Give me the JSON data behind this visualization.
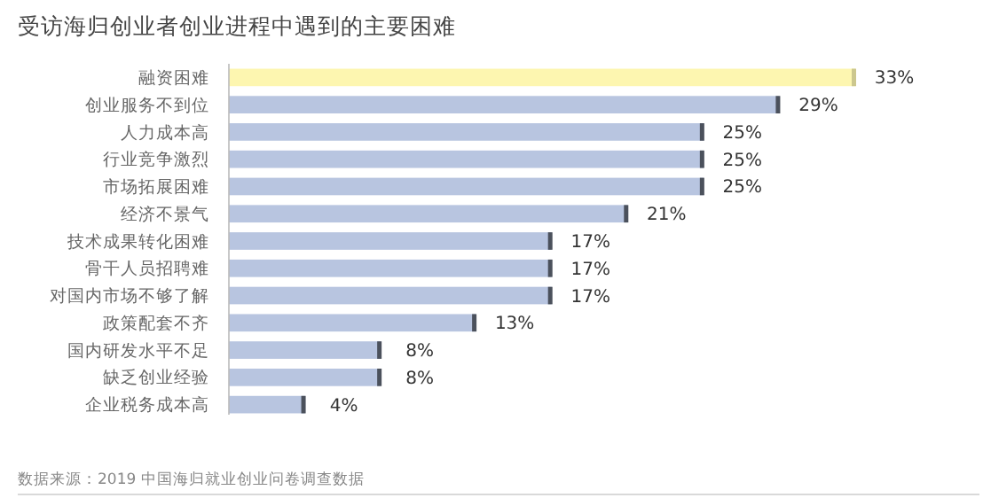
{
  "chart_data": {
    "type": "bar",
    "orientation": "horizontal",
    "title": "受访海归创业者创业进程中遇到的主要困难",
    "categories": [
      "融资困难",
      "创业服务不到位",
      "人力成本高",
      "行业竞争激烈",
      "市场拓展困难",
      "经济不景气",
      "技术成果转化困难",
      "骨干人员招聘难",
      "对国内市场不够了解",
      "政策配套不齐",
      "国内研发水平不足",
      "缺乏创业经验",
      "企业税务成本高"
    ],
    "values": [
      33,
      29,
      25,
      25,
      25,
      21,
      17,
      17,
      17,
      13,
      8,
      8,
      4
    ],
    "value_labels": [
      "33%",
      "29%",
      "25%",
      "25%",
      "25%",
      "21%",
      "17%",
      "17%",
      "17%",
      "13%",
      "8%",
      "8%",
      "4%"
    ],
    "colors": [
      "#fdf6b0",
      "#b8c5e0",
      "#b8c5e0",
      "#b8c5e0",
      "#b8c5e0",
      "#b8c5e0",
      "#b8c5e0",
      "#b8c5e0",
      "#b8c5e0",
      "#b8c5e0",
      "#b8c5e0",
      "#b8c5e0",
      "#b8c5e0"
    ],
    "xlim": [
      0,
      33
    ],
    "annotations": [
      "数据来源：2019 中国海归就业创业问卷调查数据"
    ]
  }
}
